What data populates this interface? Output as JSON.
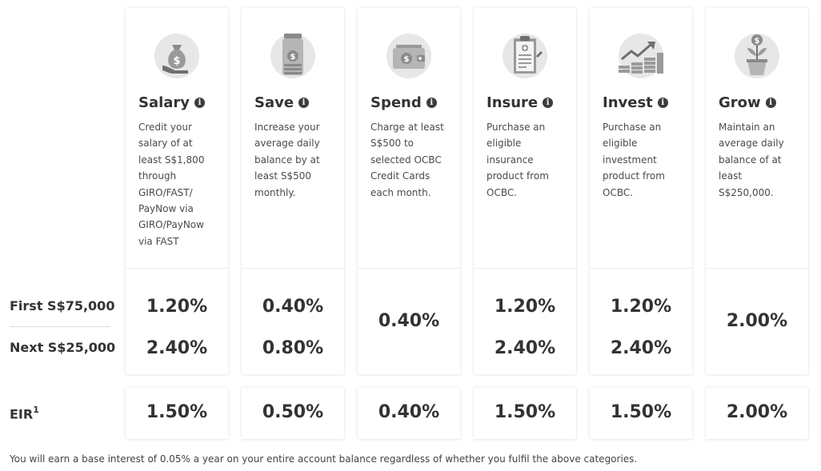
{
  "row_labels": {
    "first": "First S$75,000",
    "next": "Next S$25,000",
    "eir": "EIR",
    "eir_sup": "1"
  },
  "categories": [
    {
      "title": "Salary",
      "icon": "money-bag-hand-icon",
      "description": "Credit your salary of at least S$1,800 through GIRO/FAST/ PayNow via GIRO/PayNow via FAST",
      "first_rate": "1.20%",
      "next_rate": "2.40%",
      "eir": "1.50%"
    },
    {
      "title": "Save",
      "icon": "savings-jar-icon",
      "description": "Increase your average daily balance by at least S$500 monthly.",
      "first_rate": "0.40%",
      "next_rate": "0.80%",
      "eir": "0.50%"
    },
    {
      "title": "Spend",
      "icon": "wallet-icon",
      "description": "Charge at least S$500 to selected OCBC Credit Cards each month.",
      "single_rate": "0.40%",
      "eir": "0.40%"
    },
    {
      "title": "Insure",
      "icon": "clipboard-medical-icon",
      "description": "Purchase an eligible insurance product from OCBC.",
      "first_rate": "1.20%",
      "next_rate": "2.40%",
      "eir": "1.50%"
    },
    {
      "title": "Invest",
      "icon": "growth-chart-coins-icon",
      "description": "Purchase an eligible investment product from OCBC.",
      "first_rate": "1.20%",
      "next_rate": "2.40%",
      "eir": "1.50%"
    },
    {
      "title": "Grow",
      "icon": "money-plant-icon",
      "description": "Maintain an average daily balance of at least S$250,000.",
      "single_rate": "2.00%",
      "eir": "2.00%"
    }
  ],
  "footnote": "You will earn a base interest of 0.05% a year on your entire account balance regardless of whether you fulfil the above categories.",
  "colors": {
    "icon_bg": "#e7e7e7",
    "icon_fg": "#8a8a8a",
    "text": "#333333",
    "info_icon": "#3d3d3d"
  }
}
